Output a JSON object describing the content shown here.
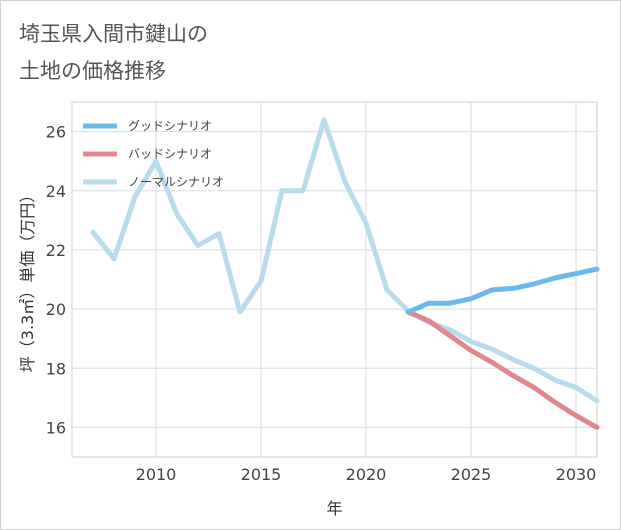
{
  "page": {
    "title_line1": "埼玉県入間市鍵山の",
    "title_line2": "土地の価格推移"
  },
  "chart_data": {
    "type": "line",
    "title": "埼玉県入間市鍵山の土地の価格推移",
    "xlabel": "年",
    "ylabel": "坪（3.3㎡）単価（万円）",
    "xlim": [
      2006,
      2031
    ],
    "ylim": [
      15,
      27
    ],
    "xticks": [
      2010,
      2015,
      2020,
      2025,
      2030
    ],
    "yticks": [
      16,
      18,
      20,
      22,
      24,
      26
    ],
    "grid": true,
    "legend_position": "top-left",
    "series": [
      {
        "name": "グッドシナリオ",
        "color": "#6cb9ee",
        "x": [
          2022,
          2023,
          2024,
          2025,
          2026,
          2027,
          2028,
          2029,
          2030,
          2031
        ],
        "values": [
          19.9,
          20.2,
          20.2,
          20.35,
          20.65,
          20.7,
          20.85,
          21.05,
          21.2,
          21.35
        ]
      },
      {
        "name": "バッドシナリオ",
        "color": "#e0878f",
        "x": [
          2022,
          2023,
          2024,
          2025,
          2026,
          2027,
          2028,
          2029,
          2030,
          2031
        ],
        "values": [
          19.9,
          19.6,
          19.1,
          18.6,
          18.2,
          17.75,
          17.35,
          16.85,
          16.4,
          16.0
        ]
      },
      {
        "name": "ノーマルシナリオ",
        "color": "#b8dcec",
        "x": [
          2007,
          2008,
          2009,
          2010,
          2011,
          2012,
          2013,
          2014,
          2015,
          2016,
          2017,
          2018,
          2019,
          2020,
          2021,
          2022,
          2023,
          2024,
          2025,
          2026,
          2027,
          2028,
          2029,
          2030,
          2031
        ],
        "values": [
          22.6,
          21.7,
          23.8,
          25.0,
          23.2,
          22.15,
          22.55,
          19.9,
          20.95,
          24.0,
          24.0,
          26.4,
          24.3,
          22.9,
          20.65,
          19.95,
          19.55,
          19.3,
          18.9,
          18.65,
          18.3,
          18.0,
          17.6,
          17.35,
          16.9
        ]
      }
    ]
  }
}
